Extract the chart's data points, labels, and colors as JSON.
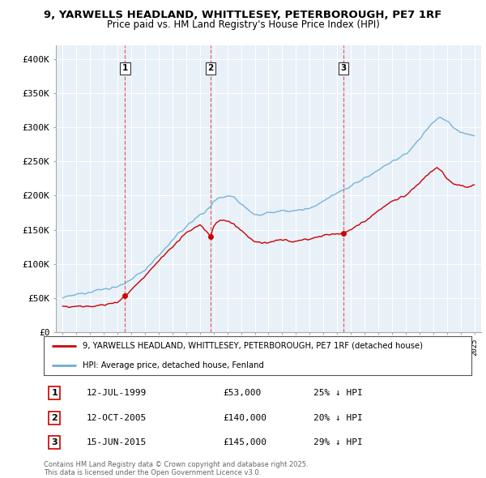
{
  "title_line1": "9, YARWELLS HEADLAND, WHITTLESEY, PETERBOROUGH, PE7 1RF",
  "title_line2": "Price paid vs. HM Land Registry's House Price Index (HPI)",
  "sale_label_info": [
    {
      "num": "1",
      "date": "12-JUL-1999",
      "price": "£53,000",
      "pct": "25% ↓ HPI"
    },
    {
      "num": "2",
      "date": "12-OCT-2005",
      "price": "£140,000",
      "pct": "20% ↓ HPI"
    },
    {
      "num": "3",
      "date": "15-JUN-2015",
      "price": "£145,000",
      "pct": "29% ↓ HPI"
    }
  ],
  "hpi_color": "#6aaed6",
  "sale_color": "#cc0000",
  "vline_color": "#e06666",
  "background_color": "#ffffff",
  "chart_bg_color": "#ddeeff",
  "grid_color": "#aaaacc",
  "ylim": [
    0,
    420000
  ],
  "yticks": [
    0,
    50000,
    100000,
    150000,
    200000,
    250000,
    300000,
    350000,
    400000
  ],
  "ytick_labels": [
    "£0",
    "£50K",
    "£100K",
    "£150K",
    "£200K",
    "£250K",
    "£300K",
    "£350K",
    "£400K"
  ],
  "legend_label_red": "9, YARWELLS HEADLAND, WHITTLESEY, PETERBOROUGH, PE7 1RF (detached house)",
  "legend_label_blue": "HPI: Average price, detached house, Fenland",
  "footer_line1": "Contains HM Land Registry data © Crown copyright and database right 2025.",
  "footer_line2": "This data is licensed under the Open Government Licence v3.0.",
  "sale_years": [
    1999.54,
    2005.79,
    2015.46
  ],
  "sale_prices": [
    53000,
    140000,
    145000
  ]
}
